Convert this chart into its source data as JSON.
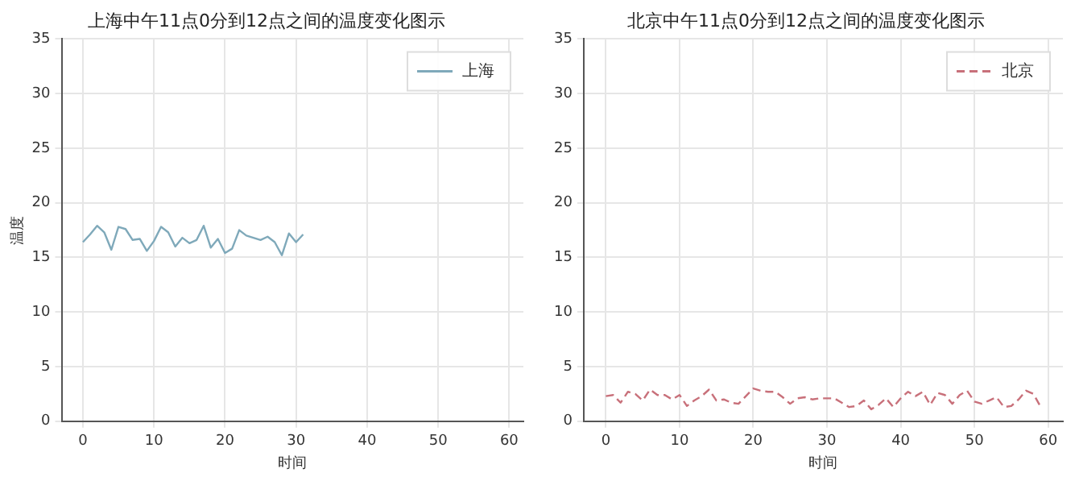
{
  "chart_data": [
    {
      "type": "line",
      "title": "上海中午11点0分到12点之间的温度变化图示",
      "xlabel": "时间",
      "ylabel": "温度",
      "xlim": [
        -3,
        62
      ],
      "xticks": [
        0,
        10,
        20,
        30,
        40,
        50,
        60
      ],
      "ylim": [
        0,
        35
      ],
      "yticks": [
        0,
        5,
        10,
        15,
        20,
        25,
        30,
        35
      ],
      "grid": true,
      "legend": "top right",
      "marker": "none",
      "series": [
        {
          "name": "上海",
          "color": "#7fa9ba",
          "line_style": "solid",
          "x": [
            0,
            1,
            2,
            3,
            4,
            5,
            6,
            7,
            8,
            9,
            10,
            11,
            12,
            13,
            14,
            15,
            16,
            17,
            18,
            19,
            20,
            21,
            22,
            23,
            24,
            25,
            26,
            27,
            28,
            29,
            30,
            31
          ],
          "values": [
            16.4,
            17.1,
            17.9,
            17.3,
            15.7,
            17.8,
            17.6,
            16.6,
            16.7,
            15.6,
            16.5,
            17.8,
            17.3,
            16.0,
            16.8,
            16.3,
            16.6,
            17.9,
            15.9,
            16.7,
            15.4,
            15.8,
            17.5,
            17.0,
            16.8,
            16.6,
            16.9,
            16.4,
            15.2,
            17.2,
            16.4,
            17.1
          ]
        }
      ]
    },
    {
      "type": "line",
      "title": "北京中午11点0分到12点之间的温度变化图示",
      "xlabel": "时间",
      "x": [
        0,
        1,
        2,
        3,
        4,
        5,
        6,
        7,
        8,
        9,
        10,
        11,
        12,
        13,
        14,
        15,
        16,
        17,
        18,
        19,
        20,
        21,
        22,
        23,
        24,
        25,
        26,
        27,
        28,
        29,
        30,
        31,
        32,
        33,
        34,
        35,
        36,
        37,
        38,
        39,
        40,
        41,
        42,
        43,
        44,
        45,
        46,
        47,
        48,
        49,
        50,
        51,
        52,
        53,
        54,
        55,
        56,
        57,
        58,
        59
      ],
      "xlim": [
        -3,
        62
      ],
      "xticks": [
        0,
        10,
        20,
        30,
        40,
        50,
        60
      ],
      "ylim": [
        0,
        35
      ],
      "yticks": [
        0,
        5,
        10,
        15,
        20,
        25,
        30,
        35
      ],
      "grid": true,
      "legend": "top right",
      "marker": "none",
      "series": [
        {
          "name": "北京",
          "color": "#c8707a",
          "line_style": "dashed",
          "values": [
            2.3,
            2.4,
            1.7,
            2.7,
            2.5,
            1.9,
            2.9,
            2.4,
            2.4,
            2.0,
            2.4,
            1.4,
            1.9,
            2.3,
            2.9,
            1.9,
            2.0,
            1.7,
            1.6,
            2.3,
            3.0,
            2.8,
            2.7,
            2.7,
            2.2,
            1.6,
            2.1,
            2.2,
            2.0,
            2.1,
            2.1,
            2.1,
            1.7,
            1.3,
            1.4,
            1.9,
            1.1,
            1.5,
            2.1,
            1.3,
            2.1,
            2.7,
            2.3,
            2.7,
            1.5,
            2.6,
            2.4,
            1.6,
            2.4,
            2.8,
            1.8,
            1.6,
            1.9,
            2.2,
            1.3,
            1.4,
            2.0,
            2.8,
            2.5,
            1.3
          ]
        }
      ]
    }
  ]
}
